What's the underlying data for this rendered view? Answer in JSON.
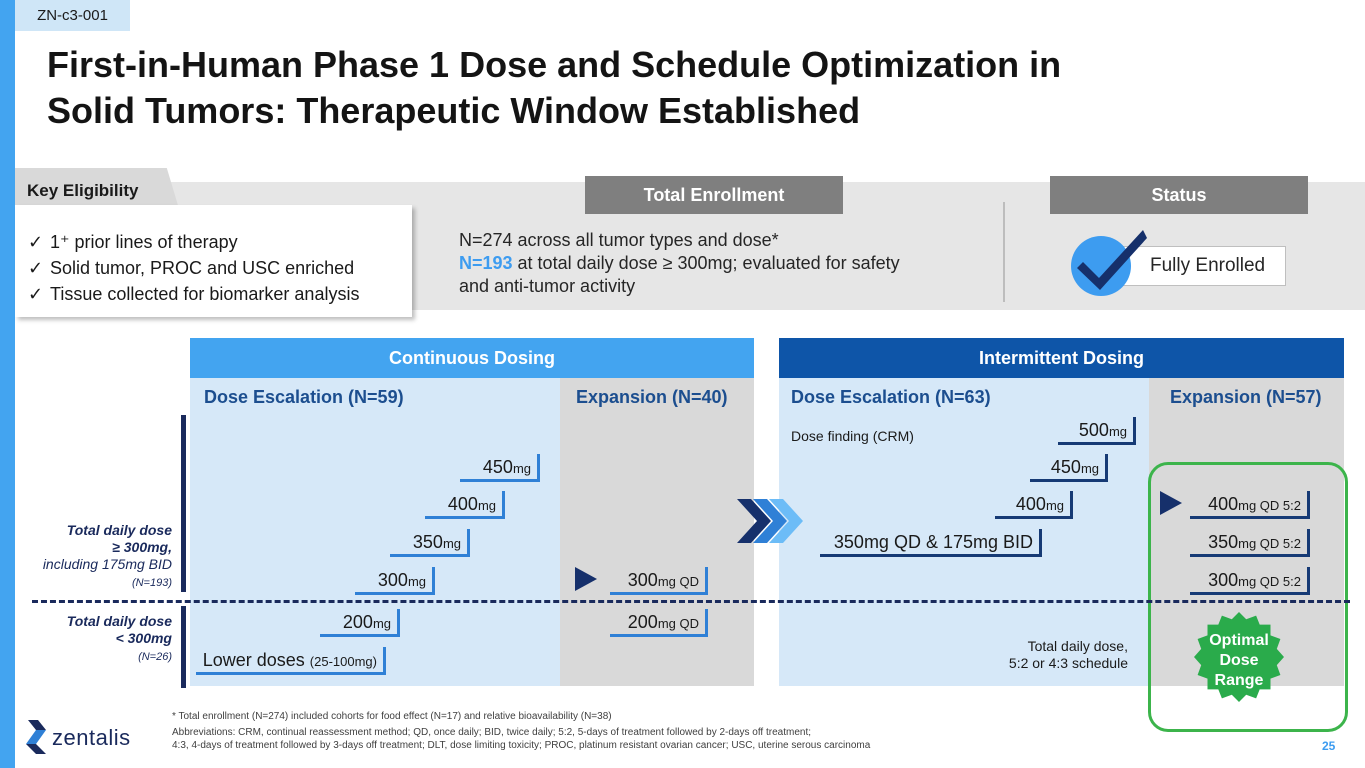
{
  "tag": "ZN-c3-001",
  "title_line1": "First-in-Human Phase 1 Dose and Schedule Optimization in",
  "title_line2": "Solid Tumors:  Therapeutic Window Established",
  "key_eligibility": {
    "label": "Key Eligibility",
    "items": [
      "1⁺ prior lines of therapy",
      "Solid tumor, PROC and USC enriched",
      "Tissue collected for biomarker analysis"
    ],
    "check": "✓"
  },
  "enrollment": {
    "label": "Total Enrollment",
    "line1": "N=274 across all tumor types and dose*",
    "line2_highlight": "N=193",
    "line2_rest": " at total daily dose ≥ 300mg; evaluated for safety",
    "line3": "and anti-tumor activity"
  },
  "status": {
    "label": "Status",
    "value": "Fully Enrolled",
    "icon": "check-icon"
  },
  "continuous": {
    "header": "Continuous Dosing",
    "escalation": "Dose Escalation (N=59)",
    "expansion": "Expansion (N=40)",
    "doses": {
      "d450": "450",
      "d400": "400",
      "d350": "350",
      "d300": "300",
      "d200": "200",
      "lower": "Lower doses ",
      "lower_small": "(25-100mg)",
      "exp300": "300",
      "exp300_unit": "mg QD",
      "exp200": "200",
      "exp200_unit": "mg QD",
      "unit": "mg"
    }
  },
  "intermittent": {
    "header": "Intermittent Dosing",
    "escalation": "Dose Escalation (N=63)",
    "expansion": "Expansion (N=57)",
    "crm_note": "Dose finding (CRM)",
    "doses": {
      "d500": "500",
      "d450": "450",
      "d400": "400",
      "d350bid": "350mg QD & 175mg BID",
      "unit": "mg",
      "exp400": "400",
      "exp350": "350",
      "exp300": "300",
      "exp_unit": "mg QD 5:2"
    },
    "schedule_note_1": "Total daily dose,",
    "schedule_note_2": "5:2 or 4:3 schedule"
  },
  "side_labels": {
    "upper_1": "Total daily dose",
    "upper_2": "≥ 300mg,",
    "upper_3": "including 175mg BID",
    "upper_4": "(N=193)",
    "lower_1": "Total daily dose",
    "lower_2": "< 300mg",
    "lower_3": "(N=26)"
  },
  "optimal": {
    "line1": "Optimal",
    "line2": "Dose",
    "line3": "Range"
  },
  "footnotes": {
    "f1": "* Total enrollment (N=274) included cohorts for food effect (N=17) and relative bioavailability (N=38)",
    "f2": "Abbreviations: CRM, continual reassessment method; QD, once daily; BID, twice daily; 5:2, 5-days of treatment followed by 2-days off treatment;",
    "f3": "4:3, 4-days of treatment followed by 3-days off treatment; DLT, dose limiting toxicity; PROC, platinum resistant ovarian cancer; USC, uterine serous carcinoma"
  },
  "logo": "zentalis",
  "page_number": "25",
  "colors": {
    "light_blue": "#43a4f0",
    "dark_blue": "#0e55a8",
    "navy": "#1a2a5c",
    "green": "#2aab4b"
  }
}
